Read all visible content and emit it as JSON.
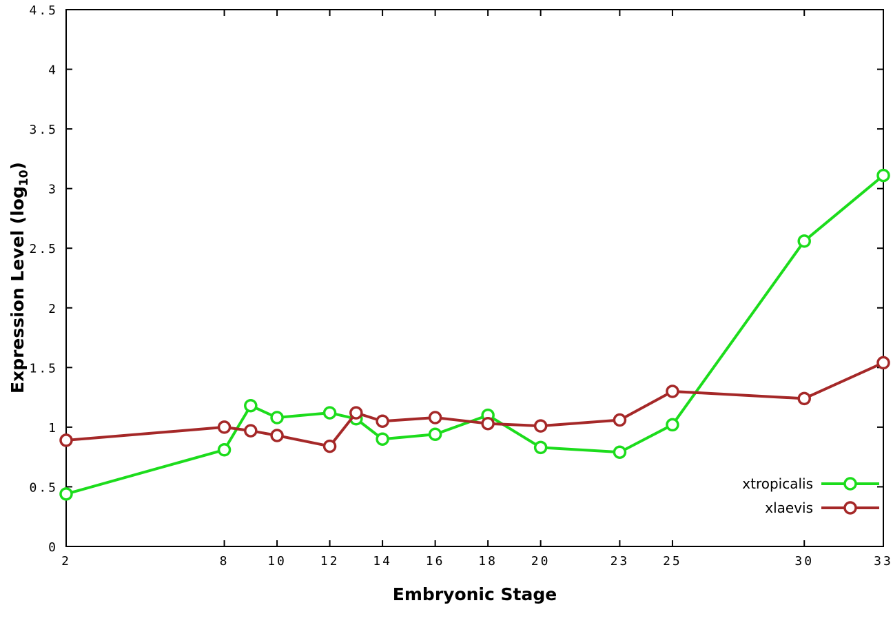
{
  "chart_data": {
    "type": "line",
    "title": "",
    "xlabel": "Embryonic Stage",
    "ylabel": "Expression Level (log10)",
    "ylabel_parts": {
      "prefix": "Expression Level (log",
      "sub": "10",
      "suffix": ")"
    },
    "x": [
      2,
      8,
      9,
      10,
      12,
      13,
      14,
      16,
      18,
      20,
      23,
      25,
      30,
      33
    ],
    "series": [
      {
        "name": "xtropicalis",
        "color": "#1cdc1c",
        "values": [
          0.44,
          0.81,
          1.18,
          1.08,
          1.12,
          1.07,
          0.9,
          0.94,
          1.1,
          0.83,
          0.79,
          1.02,
          2.56,
          3.11
        ]
      },
      {
        "name": "xlaevis",
        "color": "#a52828",
        "values": [
          0.89,
          1.0,
          0.97,
          0.93,
          0.84,
          1.12,
          1.05,
          1.08,
          1.03,
          1.01,
          1.06,
          1.3,
          1.24,
          1.54
        ]
      }
    ],
    "xlim": [
      2,
      33
    ],
    "ylim": [
      0,
      4.5
    ],
    "xtick_values": [
      2,
      8,
      10,
      12,
      14,
      16,
      18,
      20,
      23,
      25,
      30,
      33
    ],
    "xtick_labels": [
      "2",
      "8",
      "10",
      "12",
      "14",
      "16",
      "18",
      "20",
      "23",
      "25",
      "30",
      "33"
    ],
    "ytick_values": [
      0,
      0.5,
      1,
      1.5,
      2,
      2.5,
      3,
      3.5,
      4,
      4.5
    ],
    "ytick_labels": [
      "0",
      "0.5",
      "1",
      "1.5",
      "2",
      "2.5",
      "3",
      "3.5",
      "4",
      "4.5"
    ],
    "grid": false,
    "legend_position": "inside-bottom-right",
    "marker": "open-circle",
    "axis_color": "#000000",
    "background_color": "#ffffff"
  }
}
